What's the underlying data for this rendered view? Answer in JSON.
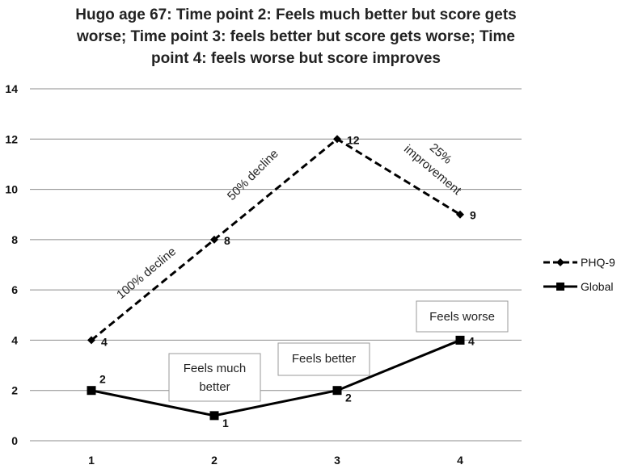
{
  "chart_data": {
    "type": "line",
    "title": "Hugo age 67: Time point 2: Feels much better but score gets worse; Time point 3: feels better but score gets worse; Time point 4: feels worse but score improves",
    "title_lines": [
      "Hugo age 67: Time point 2: Feels much better but score gets",
      "worse; Time point 3: feels better but score gets worse; Time",
      "point 4: feels worse but score improves"
    ],
    "categories": [
      "1",
      "2",
      "3",
      "4"
    ],
    "ylim": [
      0,
      14
    ],
    "yticks": [
      "0",
      "2",
      "4",
      "6",
      "8",
      "10",
      "12",
      "14"
    ],
    "grid": true,
    "legend_position": "right",
    "series": [
      {
        "name": "PHQ-9",
        "values": [
          4,
          8,
          12,
          9
        ],
        "labels": [
          "4",
          "8",
          "12",
          "9"
        ],
        "style": "dashed",
        "marker": "diamond"
      },
      {
        "name": "Global",
        "values": [
          2,
          1,
          2,
          4
        ],
        "labels": [
          "2",
          "1",
          "2",
          "4"
        ],
        "style": "solid",
        "marker": "square"
      }
    ],
    "slope_annotations": [
      "100% decline",
      "50% decline",
      "25%",
      "improvement"
    ],
    "box_annotations": [
      "Feels much",
      "better",
      "Feels better",
      "Feels worse"
    ]
  }
}
